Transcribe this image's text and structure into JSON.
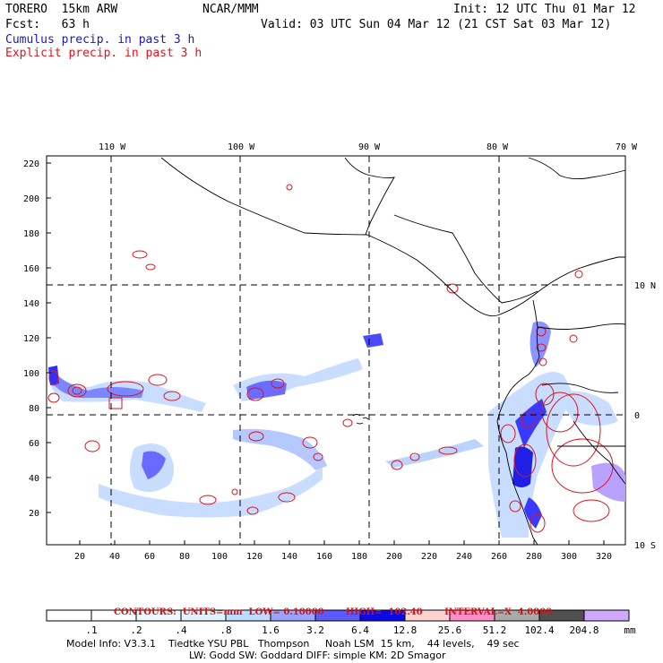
{
  "header": {
    "model": "TORERO  15km ARW",
    "center": "NCAR/MMM",
    "init": "Init: 12 UTC Thu 01 Mar 12",
    "fcst": "Fcst:   63 h",
    "valid": "Valid: 03 UTC Sun 04 Mar 12 (21 CST Sat 03 Mar 12)",
    "cumulus_label": "Cumulus precip. in past 3 h",
    "explicit_label": "Explicit precip. in past 3 h"
  },
  "axes": {
    "top_lon_labels": [
      "110 W",
      "100 W",
      "90 W",
      "80 W",
      "70 W"
    ],
    "right_lat_labels": [
      "10 N",
      "0",
      "10 S"
    ],
    "y_ticks": [
      "220",
      "200",
      "180",
      "160",
      "140",
      "120",
      "100",
      "80",
      "60",
      "40",
      "20"
    ],
    "x_ticks": [
      "20",
      "40",
      "60",
      "80",
      "100",
      "120",
      "140",
      "160",
      "180",
      "200",
      "220",
      "240",
      "260",
      "280",
      "300",
      "320"
    ]
  },
  "contours_line": {
    "units": "CONTOURS:  UNITS=mm  LOW= 0.10000",
    "high": "HIGH=  102.40",
    "interval": "INTERVAL=X  4.0000"
  },
  "colorbar": {
    "labels": [
      ".1",
      ".2",
      ".4",
      ".8",
      "1.6",
      "3.2",
      "6.4",
      "12.8",
      "25.6",
      "51.2",
      "102.4",
      "204.8"
    ],
    "unit": "mm",
    "colors": [
      "#ffffff",
      "#ffffff",
      "#eef8ff",
      "#dff4ff",
      "#bddcff",
      "#9aa4ff",
      "#5a5aff",
      "#0a0ae6",
      "#ffd2d2",
      "#ff8ec8",
      "#aaaaaa",
      "#505050",
      "#cfa8ff"
    ]
  },
  "footer": {
    "line1": "Model Info: V3.3.1    Tiedtke YSU PBL   Thompson     Noah LSM  15 km,    44 levels,    49 sec",
    "line2": "LW: Godd SW: Goddard DIFF: simple KM: 2D Smagor"
  },
  "colors": {
    "cumulus": "#1a1ab4",
    "explicit": "#e0141e",
    "land_line": "#000000"
  }
}
